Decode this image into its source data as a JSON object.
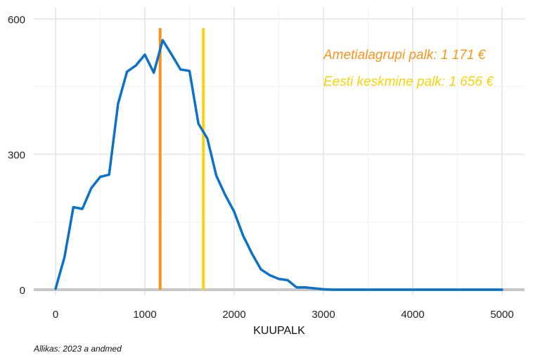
{
  "chart_data": {
    "type": "line",
    "xlabel": "KUUPALK",
    "ylabel": "",
    "xlim": [
      -250,
      5250
    ],
    "ylim": [
      -20,
      600
    ],
    "x_ticks": [
      0,
      1000,
      2000,
      3000,
      4000,
      5000
    ],
    "y_ticks": [
      0,
      300,
      600
    ],
    "grid": true,
    "series": [
      {
        "color": "#0b72c8",
        "x": [
          0,
          100,
          200,
          300,
          400,
          500,
          600,
          700,
          800,
          900,
          1000,
          1100,
          1200,
          1300,
          1400,
          1500,
          1600,
          1700,
          1800,
          1900,
          2000,
          2100,
          2200,
          2300,
          2400,
          2500,
          2600,
          2700,
          2800,
          2900,
          3000,
          3100,
          3200,
          3500,
          4000,
          4500,
          5000
        ],
        "y": [
          2,
          72,
          183,
          179,
          225,
          250,
          255,
          412,
          483,
          497,
          521,
          481,
          553,
          521,
          488,
          485,
          368,
          335,
          253,
          210,
          173,
          120,
          80,
          45,
          32,
          24,
          21,
          5,
          5,
          3,
          1,
          0,
          0,
          0,
          0,
          0,
          0
        ]
      }
    ],
    "reference_lines": [
      {
        "x": 1171,
        "color": "#f7941d",
        "label": "Ametialagrupi palk: 1 171 €"
      },
      {
        "x": 1656,
        "color": "#f5d20b",
        "label": "Eesti keskmine palk: 1 656 €"
      }
    ],
    "source": "Allikas: 2023 a andmed"
  }
}
